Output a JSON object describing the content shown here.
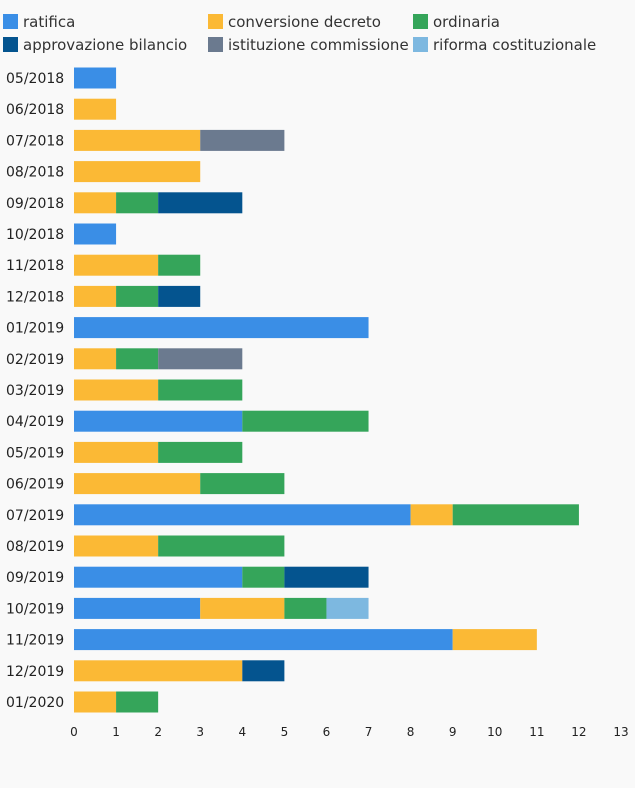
{
  "chart_data": {
    "type": "bar",
    "orientation": "horizontal",
    "stacked": true,
    "categories": [
      "05/2018",
      "06/2018",
      "07/2018",
      "08/2018",
      "09/2018",
      "10/2018",
      "11/2018",
      "12/2018",
      "01/2019",
      "02/2019",
      "03/2019",
      "04/2019",
      "05/2019",
      "06/2019",
      "07/2019",
      "08/2019",
      "09/2019",
      "10/2019",
      "11/2019",
      "12/2019",
      "01/2020"
    ],
    "series": [
      {
        "name": "ratifica",
        "color": "#3a8ee6",
        "values": [
          1,
          0,
          0,
          0,
          0,
          1,
          0,
          0,
          7,
          0,
          0,
          4,
          0,
          0,
          8,
          0,
          4,
          3,
          9,
          0,
          0
        ]
      },
      {
        "name": "conversione decreto",
        "color": "#fbb935",
        "values": [
          0,
          1,
          3,
          3,
          1,
          0,
          2,
          1,
          0,
          1,
          2,
          0,
          2,
          3,
          1,
          2,
          0,
          2,
          2,
          4,
          1
        ]
      },
      {
        "name": "ordinaria",
        "color": "#35a55a",
        "values": [
          0,
          0,
          0,
          0,
          1,
          0,
          1,
          1,
          0,
          1,
          2,
          3,
          2,
          2,
          3,
          3,
          1,
          1,
          0,
          0,
          1
        ]
      },
      {
        "name": "approvazione bilancio",
        "color": "#04548f",
        "values": [
          0,
          0,
          0,
          0,
          2,
          0,
          0,
          1,
          0,
          0,
          0,
          0,
          0,
          0,
          0,
          0,
          2,
          0,
          0,
          1,
          0
        ]
      },
      {
        "name": "istituzione commissione",
        "color": "#6b7a8f",
        "values": [
          0,
          0,
          2,
          0,
          0,
          0,
          0,
          0,
          0,
          2,
          0,
          0,
          0,
          0,
          0,
          0,
          0,
          0,
          0,
          0,
          0
        ]
      },
      {
        "name": "riforma costituzionale",
        "color": "#7db8e0",
        "values": [
          0,
          0,
          0,
          0,
          0,
          0,
          0,
          0,
          0,
          0,
          0,
          0,
          0,
          0,
          0,
          0,
          0,
          1,
          0,
          0,
          0
        ]
      }
    ],
    "x_ticks": [
      "0",
      "1",
      "2",
      "3",
      "4",
      "5",
      "6",
      "7",
      "8",
      "9",
      "10",
      "11",
      "12",
      "13"
    ],
    "xlim": [
      0,
      13
    ],
    "title": "",
    "xlabel": "",
    "ylabel": "",
    "grid": false,
    "legend_position": "top"
  }
}
